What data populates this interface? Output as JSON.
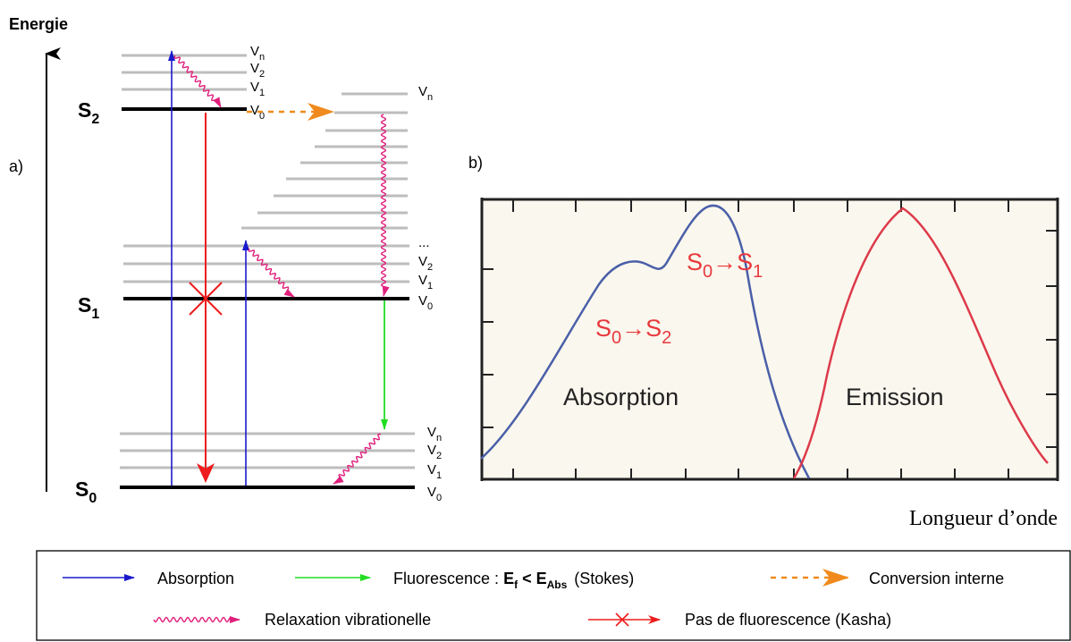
{
  "panel_a": {
    "axis_label": "Energie",
    "panel_label": "a)",
    "states": {
      "S2": {
        "letter": "S",
        "sub": "2"
      },
      "S1": {
        "letter": "S",
        "sub": "1"
      },
      "S0": {
        "letter": "S",
        "sub": "0"
      }
    },
    "levels": {
      "S2": [
        {
          "main": "V",
          "sub": "n"
        },
        {
          "main": "V",
          "sub": "2"
        },
        {
          "main": "V",
          "sub": "1"
        },
        {
          "main": "V",
          "sub": "0"
        }
      ],
      "S1_top": {
        "main": "V",
        "sub": "n"
      },
      "S1": [
        {
          "main": "...",
          "sub": ""
        },
        {
          "main": "V",
          "sub": "2"
        },
        {
          "main": "V",
          "sub": "1"
        },
        {
          "main": "V",
          "sub": "0"
        }
      ],
      "S0": [
        {
          "main": "V",
          "sub": "n"
        },
        {
          "main": "V",
          "sub": "2"
        },
        {
          "main": "V",
          "sub": "1"
        },
        {
          "main": "V",
          "sub": "0"
        }
      ]
    }
  },
  "panel_b": {
    "panel_label": "b)",
    "x_axis_label": "Longueur d’onde",
    "absorption_label": "Absorption",
    "emission_label": "Emission",
    "transition_s0_s1": {
      "from": "S",
      "from_sub": "0",
      "arrow": "→",
      "to": "S",
      "to_sub": "1"
    },
    "transition_s0_s2": {
      "from": "S",
      "from_sub": "0",
      "arrow": "→",
      "to": "S",
      "to_sub": "2"
    }
  },
  "legend": {
    "absorption": "Absorption",
    "fluorescence_prefix": "Fluorescence : ",
    "fluorescence_ef": "E",
    "fluorescence_ef_sub": "f",
    "fluorescence_lt": " < ",
    "fluorescence_eabs": "E",
    "fluorescence_eabs_sub": "Abs",
    "fluorescence_suffix": "(Stokes)",
    "internal_conversion": "Conversion interne",
    "vibrational_relaxation": "Relaxation vibrationelle",
    "no_fluorescence": "Pas de fluorescence (Kasha)"
  },
  "colors": {
    "absorption": "#1a1acc",
    "fluorescence": "#22dd22",
    "internal_conversion": "#f08a1c",
    "vibrational_relaxation": "#e0207c",
    "no_fluorescence": "#ee1c1c",
    "level_line": "#bdbdbd",
    "spectrum_bg": "#faf7ee",
    "absorption_curve": "#4a5fa8",
    "emission_curve": "#dd3a4a",
    "spectrum_text": "#e8383c"
  }
}
